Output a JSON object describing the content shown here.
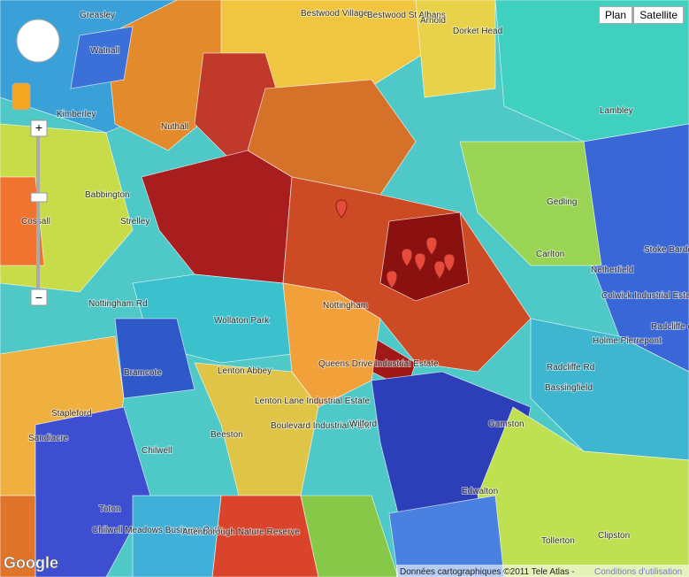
{
  "map": {
    "places": [
      {
        "label": "Greasley"
      },
      {
        "label": "Watnall"
      },
      {
        "label": "Bestwood Village"
      },
      {
        "label": "Bestwood St Albans"
      },
      {
        "label": "Arnold"
      },
      {
        "label": "Dorket Head"
      },
      {
        "label": "Kimberley"
      },
      {
        "label": "Nuthall"
      },
      {
        "label": "Lambley"
      },
      {
        "label": "Babbington"
      },
      {
        "label": "Strelley"
      },
      {
        "label": "Cossall"
      },
      {
        "label": "Gedling"
      },
      {
        "label": "Carlton"
      },
      {
        "label": "Netherfield"
      },
      {
        "label": "Stoke Bardolph"
      },
      {
        "label": "Colwick Industrial Estate"
      },
      {
        "label": "Holme Pierrepont"
      },
      {
        "label": "Nottingham"
      },
      {
        "label": "Wollaton Park"
      },
      {
        "label": "Lenton Abbey"
      },
      {
        "label": "Bramcote"
      },
      {
        "label": "Queens Drive Industrial Estate"
      },
      {
        "label": "Lenton Lane Industrial Estate"
      },
      {
        "label": "Boulevard Industrial Park"
      },
      {
        "label": "Beeston"
      },
      {
        "label": "Wilford"
      },
      {
        "label": "Gamston"
      },
      {
        "label": "Bassingfield"
      },
      {
        "label": "Stapleford"
      },
      {
        "label": "Sandiacre"
      },
      {
        "label": "Chilwell"
      },
      {
        "label": "Edwalton"
      },
      {
        "label": "Tollerton"
      },
      {
        "label": "Clipston"
      },
      {
        "label": "Toton"
      },
      {
        "label": "Chilwell Meadows Business Park"
      },
      {
        "label": "Attenborough Nature Reserve"
      },
      {
        "label": "Radcliffe on Trent"
      },
      {
        "label": "Nottingham Rd"
      },
      {
        "label": "Radcliffe Rd"
      }
    ],
    "controls": {
      "plan": "Plan",
      "satellite": "Satellite",
      "zoom_in": "+",
      "zoom_out": "−"
    },
    "logo": "Google",
    "attribution": "Données cartographiques ©2011 Tele Atlas -",
    "terms": "Conditions d'utilisation"
  }
}
